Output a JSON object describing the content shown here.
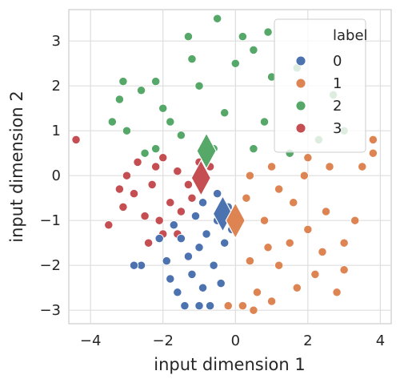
{
  "chart_data": {
    "type": "scatter",
    "xlabel": "input dimension 1",
    "ylabel": "input dimension 2",
    "xlim": [
      -4.6,
      4.3
    ],
    "ylim": [
      -3.3,
      3.7
    ],
    "xticks": [
      -4,
      -2,
      0,
      2,
      4
    ],
    "yticks": [
      -3,
      -2,
      -1,
      0,
      1,
      2,
      3
    ],
    "x_tick_labels": [
      "−4",
      "−2",
      "0",
      "2",
      "4"
    ],
    "y_tick_labels": [
      "−3",
      "−2",
      "−1",
      "0",
      "1",
      "2",
      "3"
    ],
    "grid": true,
    "legend": {
      "title": "label",
      "position": "top-right",
      "entries": [
        "0",
        "1",
        "2",
        "3"
      ]
    },
    "series": [
      {
        "name": "0",
        "color": "#4c72b0",
        "center": [
          -0.35,
          -0.85
        ],
        "points": [
          [
            -0.2,
            -0.7
          ],
          [
            -0.5,
            -1.0
          ],
          [
            -0.8,
            -1.3
          ],
          [
            -1.0,
            -1.6
          ],
          [
            -1.3,
            -1.8
          ],
          [
            -0.6,
            -2.0
          ],
          [
            -0.3,
            -1.5
          ],
          [
            -1.5,
            -1.4
          ],
          [
            -1.2,
            -2.2
          ],
          [
            -0.9,
            -2.5
          ],
          [
            -1.4,
            -2.9
          ],
          [
            -1.0,
            -2.9
          ],
          [
            -0.7,
            -2.9
          ],
          [
            -1.8,
            -2.3
          ],
          [
            -2.1,
            -1.4
          ],
          [
            -1.9,
            -1.9
          ],
          [
            -2.6,
            -2.0
          ],
          [
            -2.8,
            -2.0
          ],
          [
            -1.6,
            -2.6
          ],
          [
            -0.4,
            -2.4
          ],
          [
            -0.1,
            -1.2
          ],
          [
            -0.5,
            -0.4
          ],
          [
            -0.9,
            -0.6
          ],
          [
            -1.1,
            -0.9
          ],
          [
            -1.7,
            -1.1
          ]
        ]
      },
      {
        "name": "1",
        "color": "#dd8452",
        "center": [
          0.0,
          -1.0
        ],
        "points": [
          [
            0.3,
            -0.5
          ],
          [
            0.8,
            -1.0
          ],
          [
            1.2,
            -0.3
          ],
          [
            1.5,
            -1.5
          ],
          [
            2.0,
            -1.2
          ],
          [
            2.5,
            -0.8
          ],
          [
            3.0,
            -1.5
          ],
          [
            3.3,
            -1.0
          ],
          [
            2.2,
            -2.2
          ],
          [
            1.7,
            -2.5
          ],
          [
            1.2,
            -2.0
          ],
          [
            0.6,
            -2.6
          ],
          [
            0.2,
            -2.9
          ],
          [
            -0.2,
            -2.9
          ],
          [
            0.5,
            -3.0
          ],
          [
            1.0,
            -2.8
          ],
          [
            2.8,
            -2.6
          ],
          [
            3.0,
            -2.1
          ],
          [
            3.5,
            0.2
          ],
          [
            3.8,
            0.8
          ],
          [
            3.8,
            0.5
          ],
          [
            2.6,
            0.2
          ],
          [
            2.0,
            0.4
          ],
          [
            1.0,
            0.2
          ],
          [
            0.4,
            0.0
          ],
          [
            1.6,
            -0.6
          ],
          [
            2.4,
            -1.7
          ],
          [
            0.9,
            -1.6
          ],
          [
            0.4,
            -1.9
          ],
          [
            1.9,
            0.0
          ]
        ]
      },
      {
        "name": "2",
        "color": "#55a868",
        "center": [
          -0.8,
          0.55
        ],
        "points": [
          [
            -0.5,
            3.5
          ],
          [
            0.2,
            3.1
          ],
          [
            -1.3,
            3.1
          ],
          [
            0.9,
            3.2
          ],
          [
            1.7,
            2.4
          ],
          [
            -2.2,
            2.1
          ],
          [
            -3.1,
            2.1
          ],
          [
            -2.6,
            1.9
          ],
          [
            -3.2,
            1.7
          ],
          [
            -3.4,
            1.2
          ],
          [
            -3.0,
            1.0
          ],
          [
            -2.0,
            1.5
          ],
          [
            -1.0,
            2.0
          ],
          [
            0.0,
            2.5
          ],
          [
            1.0,
            2.2
          ],
          [
            1.8,
            1.6
          ],
          [
            2.7,
            1.8
          ],
          [
            3.0,
            1.0
          ],
          [
            2.3,
            0.8
          ],
          [
            0.8,
            1.2
          ],
          [
            -0.3,
            1.4
          ],
          [
            -1.5,
            0.9
          ],
          [
            -2.2,
            0.6
          ],
          [
            -0.6,
            0.6
          ],
          [
            0.5,
            0.6
          ],
          [
            1.5,
            0.5
          ],
          [
            -2.5,
            0.5
          ],
          [
            -1.2,
            2.6
          ],
          [
            0.5,
            2.8
          ],
          [
            -1.8,
            1.2
          ]
        ]
      },
      {
        "name": "3",
        "color": "#c44e52",
        "center": [
          -0.95,
          -0.05
        ],
        "points": [
          [
            -4.4,
            0.8
          ],
          [
            -3.5,
            -1.1
          ],
          [
            -3.1,
            -0.7
          ],
          [
            -2.7,
            0.3
          ],
          [
            -2.3,
            -0.2
          ],
          [
            -2.0,
            0.4
          ],
          [
            -1.6,
            0.1
          ],
          [
            -1.3,
            -0.2
          ],
          [
            -1.0,
            0.3
          ],
          [
            -2.8,
            -0.4
          ],
          [
            -2.5,
            -0.9
          ],
          [
            -2.1,
            -1.0
          ],
          [
            -1.8,
            -0.6
          ],
          [
            -2.4,
            -1.5
          ],
          [
            -2.0,
            -1.3
          ],
          [
            -1.5,
            -0.8
          ],
          [
            -1.2,
            -0.5
          ],
          [
            -3.0,
            0.0
          ],
          [
            -2.2,
            0.2
          ],
          [
            -0.7,
            0.2
          ],
          [
            -1.6,
            -1.3
          ],
          [
            -3.2,
            -0.3
          ]
        ]
      }
    ]
  }
}
